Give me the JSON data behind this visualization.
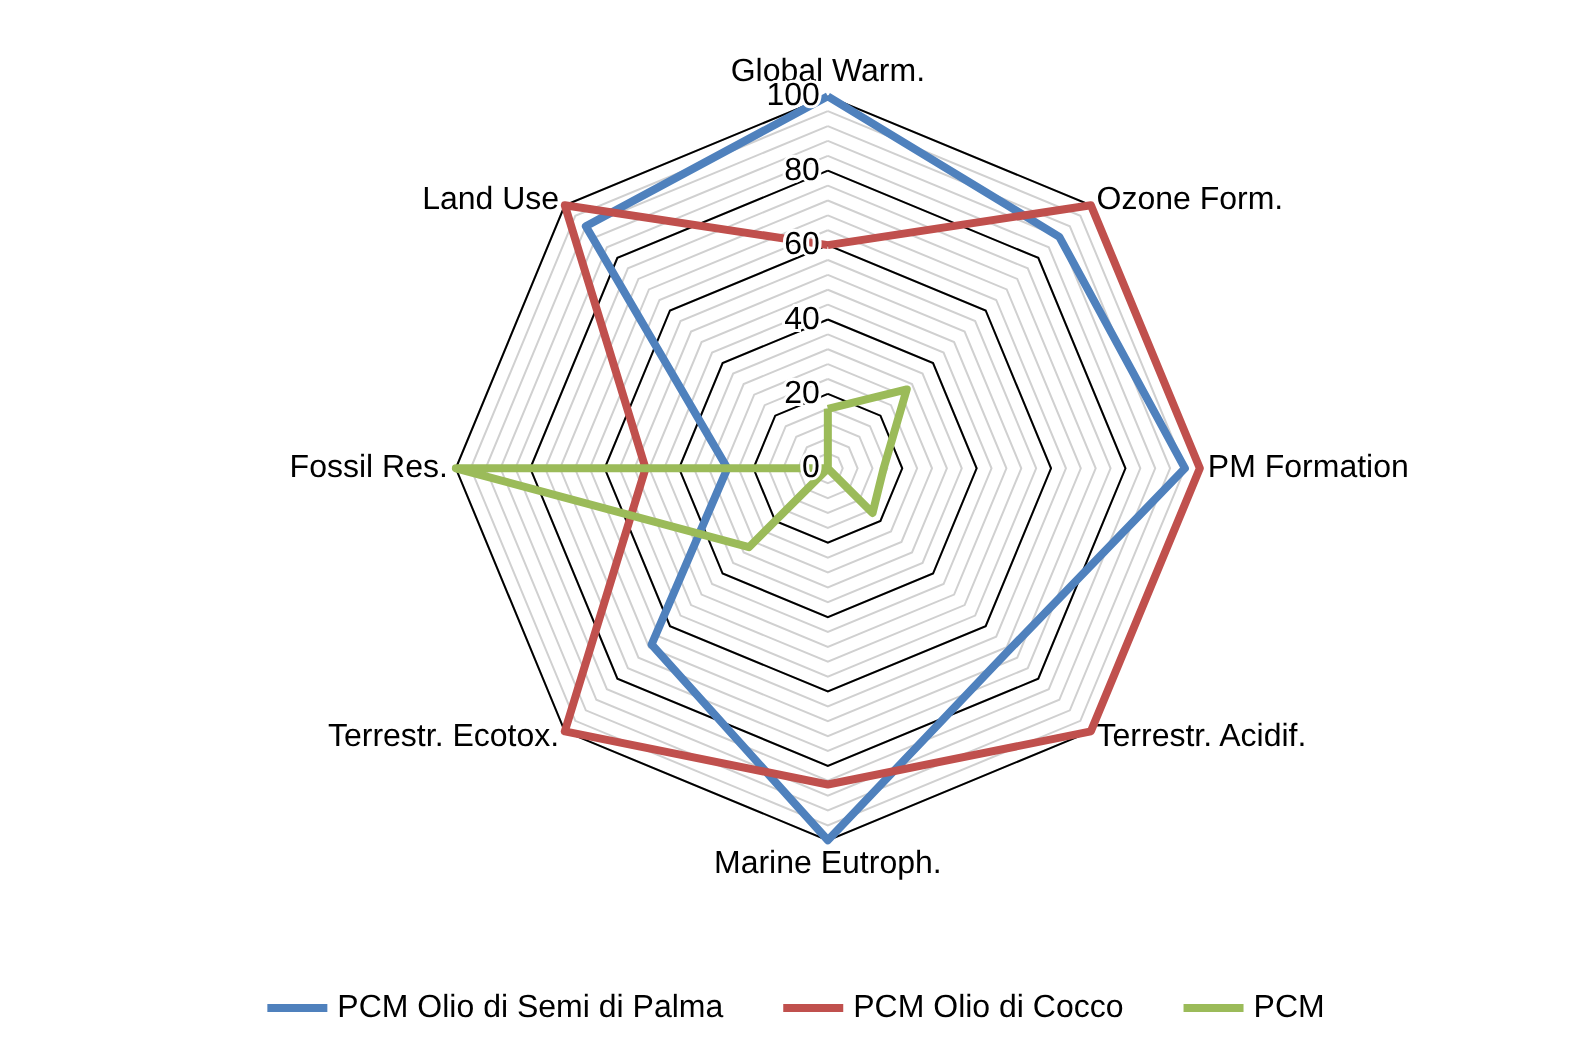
{
  "chart_data": {
    "type": "radar",
    "categories": [
      "Global Warm.",
      "Ozone Form.",
      "PM Formation",
      "Terrestr. Acidif.",
      "Marine Eutroph.",
      "Terrestr. Ecotox.",
      "Fossil Res.",
      "Land Use"
    ],
    "series": [
      {
        "name": "PCM Olio di Semi di Palma",
        "color": "#4f81bd",
        "values": [
          100,
          88,
          96,
          69,
          100,
          67,
          27,
          92
        ]
      },
      {
        "name": "PCM Olio di Cocco",
        "color": "#c0504d",
        "values": [
          60,
          100,
          100,
          100,
          85,
          100,
          49,
          100
        ]
      },
      {
        "name": "PCM",
        "color": "#9bbb59",
        "values": [
          16,
          30,
          15,
          17,
          0,
          30,
          100,
          0
        ]
      }
    ],
    "ylim": [
      0,
      100
    ],
    "yticks": [
      0,
      20,
      40,
      60,
      80,
      100
    ],
    "grid": true,
    "legend": "bottom",
    "marker": "none"
  }
}
